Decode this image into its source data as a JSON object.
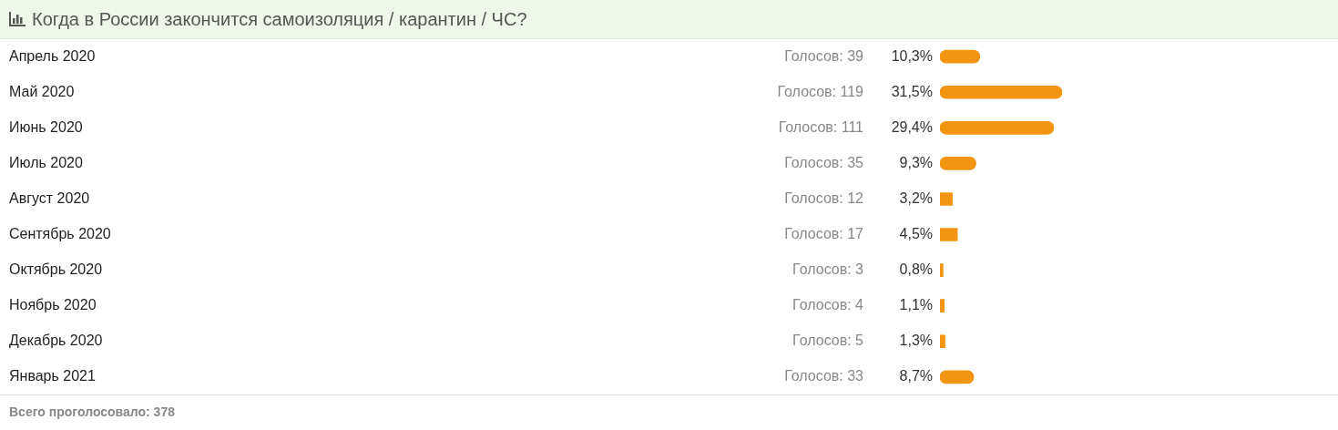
{
  "chart_data": {
    "type": "bar",
    "orientation": "horizontal",
    "title": "Когда в России закончится самоизоляция / карантин / ЧС?",
    "categories": [
      "Апрель 2020",
      "Май 2020",
      "Июнь 2020",
      "Июль 2020",
      "Август 2020",
      "Сентябрь 2020",
      "Октябрь 2020",
      "Ноябрь 2020",
      "Декабрь 2020",
      "Январь 2021"
    ],
    "values": [
      10.3,
      31.5,
      29.4,
      9.3,
      3.2,
      4.5,
      0.8,
      1.1,
      1.3,
      8.7
    ],
    "value_labels": [
      "10,3%",
      "31,5%",
      "29,4%",
      "9,3%",
      "3,2%",
      "4,5%",
      "0,8%",
      "1,1%",
      "1,3%",
      "8,7%"
    ],
    "color": "#f39512",
    "tick_labels": "y",
    "annotations": [
      "Голосов: 39",
      "Голосов: 119",
      "Голосов: 111",
      "Голосов: 35",
      "Голосов: 12",
      "Голосов: 17",
      "Голосов: 3",
      "Голосов: 4",
      "Голосов: 5",
      "Голосов: 33",
      "Всего проголосовало: 378"
    ]
  }
}
